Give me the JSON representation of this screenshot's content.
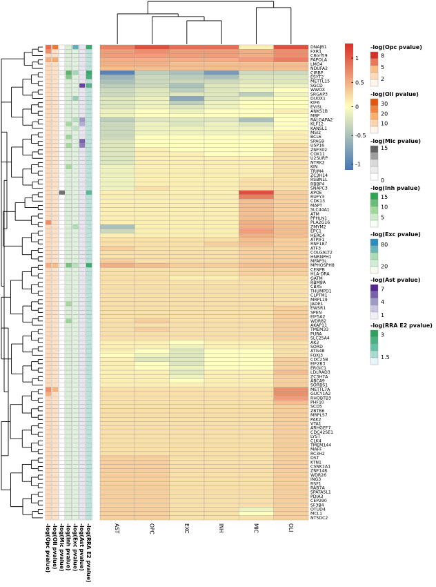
{
  "chart_data": {
    "type": "heatmap",
    "title": "",
    "columns": [
      "AST",
      "OPC",
      "EXC",
      "INH",
      "MIC",
      "OLI"
    ],
    "rows": [
      "DNAJB1",
      "FXR1",
      "C8orf59",
      "PAPOLA",
      "LMO4",
      "NDUFA2",
      "CIRBP",
      "ESYT2",
      "METTL15",
      "SGCD",
      "WWOX",
      "SRGAP3",
      "DUOX1",
      "KIF6",
      "EVI5L",
      "ANKS1B",
      "MBP",
      "RALGAPA2",
      "KLF12",
      "KANSL1",
      "MSI2",
      "BCL6",
      "SPAG9",
      "USP16",
      "ZNF302",
      "COX11",
      "U2SURP",
      "NTRK2",
      "KIN",
      "TRIM4",
      "ZC3H14",
      "RSBN1L",
      "RBBP4",
      "SNAPC3",
      "APOE",
      "RUFY3",
      "CDK13",
      "MAPT",
      "SLC44A1",
      "ATM",
      "PPHLN1",
      "PLA2G16",
      "ZMYM2",
      "EPC1",
      "HERC4",
      "ATPIF1",
      "RNF187",
      "ATF3",
      "COLGALT2",
      "HNRNPH1",
      "MFAP3L",
      "MPHOSPH8",
      "CENPB",
      "HLA-DRA",
      "GATM",
      "RBM8A",
      "CBX5",
      "THUMPD1",
      "CLPTM1",
      "MRPL19",
      "JADE1",
      "EWSR1",
      "SPEN",
      "EIF5A2",
      "WDR82",
      "AKAP11",
      "TMEM33",
      "PURA",
      "SLC25A4",
      "AK3",
      "SORD",
      "ATG4B",
      "FOXJ3",
      "CDC25B",
      "EIF2B3",
      "ERGIC1",
      "LDLRAD3",
      "ZC3H7A",
      "ABCA9",
      "SORBS1",
      "METTL7A",
      "GUCY1A2",
      "RHOBTB3",
      "PHF10",
      "SCD5",
      "ZBTB6",
      "MRPL57",
      "PAK2",
      "VTA1",
      "ARHGEF7",
      "CDC42SE1",
      "LYST",
      "CLK4",
      "TMEM144",
      "MAFF",
      "RC3H2",
      "DST",
      "KTN1",
      "CSNK1A1",
      "ZNF148",
      "WDR26",
      "ING3",
      "RSF1",
      "RAB7A",
      "SPATA5L1",
      "PDIA3",
      "CEP290",
      "SF3B4",
      "OTUD4",
      "MCL1",
      "NT5DC2"
    ],
    "values": [
      [
        0.8,
        1.1,
        0.9,
        0.9,
        0.1,
        1.1
      ],
      [
        0.6,
        0.7,
        0.6,
        0.6,
        0.5,
        0.7
      ],
      [
        0.6,
        0.6,
        0.6,
        0.6,
        0.5,
        0.7
      ],
      [
        0.5,
        0.5,
        0.5,
        0.5,
        0.6,
        0.8
      ],
      [
        0.5,
        0.5,
        0.4,
        0.4,
        0.4,
        0.4
      ],
      [
        0.4,
        0.4,
        0.4,
        0.4,
        0.4,
        0.4
      ],
      [
        -1.0,
        -0.4,
        -0.5,
        -0.8,
        -0.3,
        -0.3
      ],
      [
        -0.6,
        -0.3,
        -0.4,
        -0.5,
        -0.2,
        -0.2
      ],
      [
        -0.5,
        -0.3,
        -0.3,
        -0.3,
        -0.2,
        -0.2
      ],
      [
        -0.4,
        -0.3,
        -0.5,
        -0.2,
        -0.1,
        -0.1
      ],
      [
        -0.3,
        -0.2,
        -0.4,
        -0.2,
        -0.1,
        0.0
      ],
      [
        -0.3,
        -0.2,
        -0.2,
        -0.2,
        -0.4,
        -0.1
      ],
      [
        -0.2,
        -0.1,
        -0.7,
        -0.2,
        -0.1,
        0.0
      ],
      [
        -0.2,
        -0.1,
        -0.4,
        -0.1,
        0.0,
        0.0
      ],
      [
        -0.2,
        -0.1,
        -0.2,
        -0.1,
        0.0,
        0.0
      ],
      [
        -0.1,
        0.0,
        -0.1,
        0.0,
        0.0,
        0.1
      ],
      [
        -0.1,
        0.0,
        0.0,
        0.0,
        0.0,
        0.0
      ],
      [
        -0.4,
        -0.2,
        -0.2,
        -0.2,
        -0.5,
        0.0
      ],
      [
        -0.3,
        -0.1,
        -0.2,
        -0.1,
        -0.2,
        0.0
      ],
      [
        -0.3,
        -0.1,
        -0.1,
        -0.1,
        -0.1,
        0.0
      ],
      [
        -0.3,
        -0.1,
        -0.1,
        -0.1,
        -0.1,
        0.1
      ],
      [
        -0.3,
        0.0,
        0.0,
        0.0,
        0.0,
        0.1
      ],
      [
        -0.2,
        0.0,
        0.0,
        0.0,
        0.0,
        0.1
      ],
      [
        -0.2,
        0.0,
        0.0,
        0.0,
        0.0,
        0.2
      ],
      [
        -0.2,
        0.1,
        0.0,
        0.0,
        0.0,
        0.2
      ],
      [
        -0.2,
        0.1,
        0.1,
        0.0,
        0.0,
        0.2
      ],
      [
        -0.2,
        0.1,
        0.1,
        0.1,
        0.1,
        0.2
      ],
      [
        -0.2,
        0.1,
        0.1,
        0.1,
        0.1,
        0.2
      ],
      [
        -0.1,
        0.1,
        0.1,
        0.1,
        0.1,
        0.2
      ],
      [
        -0.1,
        0.1,
        0.1,
        0.1,
        0.1,
        0.2
      ],
      [
        -0.1,
        0.1,
        0.1,
        0.1,
        0.1,
        0.2
      ],
      [
        -0.1,
        0.1,
        0.1,
        0.1,
        0.2,
        0.2
      ],
      [
        -0.1,
        0.1,
        0.1,
        0.1,
        0.2,
        0.2
      ],
      [
        -0.1,
        0.2,
        0.1,
        0.1,
        0.2,
        0.2
      ],
      [
        0.1,
        0.1,
        0.1,
        0.1,
        1.1,
        0.3
      ],
      [
        0.1,
        0.1,
        0.1,
        0.1,
        0.8,
        0.3
      ],
      [
        0.1,
        0.1,
        0.1,
        0.1,
        0.4,
        0.3
      ],
      [
        0.1,
        0.1,
        0.1,
        0.1,
        0.4,
        0.3
      ],
      [
        0.1,
        0.1,
        0.1,
        0.1,
        0.4,
        0.3
      ],
      [
        0.1,
        0.1,
        0.1,
        0.1,
        0.4,
        0.3
      ],
      [
        0.1,
        0.1,
        0.1,
        0.1,
        0.4,
        0.3
      ],
      [
        0.1,
        0.1,
        0.1,
        0.1,
        0.5,
        0.4
      ],
      [
        -0.5,
        0.1,
        0.1,
        0.1,
        0.5,
        0.4
      ],
      [
        -0.3,
        0.1,
        0.1,
        0.1,
        0.6,
        0.4
      ],
      [
        0.1,
        0.1,
        0.1,
        0.1,
        0.5,
        0.4
      ],
      [
        0.2,
        0.2,
        0.2,
        0.2,
        0.4,
        0.3
      ],
      [
        0.2,
        0.2,
        0.2,
        0.3,
        0.4,
        0.3
      ],
      [
        0.3,
        0.2,
        0.2,
        0.2,
        0.3,
        0.3
      ],
      [
        0.2,
        0.2,
        0.2,
        0.2,
        0.3,
        0.3
      ],
      [
        0.2,
        0.2,
        0.2,
        0.2,
        0.3,
        0.3
      ],
      [
        0.3,
        0.2,
        0.2,
        0.2,
        0.3,
        0.3
      ],
      [
        0.5,
        0.4,
        0.3,
        0.3,
        0.4,
        0.4
      ],
      [
        0.2,
        0.2,
        0.2,
        0.2,
        0.3,
        0.3
      ],
      [
        0.2,
        0.2,
        0.2,
        0.2,
        0.3,
        0.3
      ],
      [
        0.2,
        0.2,
        0.1,
        0.1,
        0.2,
        0.2
      ],
      [
        0.2,
        0.2,
        0.2,
        0.2,
        0.2,
        0.2
      ],
      [
        0.2,
        0.2,
        0.2,
        0.2,
        0.2,
        0.2
      ],
      [
        0.2,
        0.2,
        0.2,
        0.2,
        0.2,
        0.2
      ],
      [
        0.2,
        0.2,
        0.2,
        0.2,
        0.2,
        0.2
      ],
      [
        0.2,
        0.2,
        0.2,
        0.2,
        0.2,
        0.2
      ],
      [
        0.2,
        0.2,
        0.2,
        0.2,
        0.2,
        0.2
      ],
      [
        0.2,
        0.2,
        0.2,
        0.2,
        0.2,
        0.3
      ],
      [
        0.2,
        0.2,
        0.2,
        0.2,
        0.2,
        0.3
      ],
      [
        0.2,
        0.2,
        0.2,
        0.2,
        0.2,
        0.3
      ],
      [
        0.2,
        0.3,
        0.2,
        0.2,
        0.2,
        0.3
      ],
      [
        0.2,
        0.2,
        0.2,
        0.2,
        0.2,
        0.3
      ],
      [
        0.2,
        0.3,
        0.2,
        0.2,
        0.2,
        0.3
      ],
      [
        0.2,
        0.2,
        0.2,
        0.2,
        0.2,
        0.3
      ],
      [
        0.2,
        0.2,
        0.2,
        0.2,
        0.2,
        0.3
      ],
      [
        0.1,
        0.1,
        0.0,
        0.1,
        0.1,
        0.2
      ],
      [
        0.1,
        0.1,
        -0.1,
        0.1,
        0.1,
        0.2
      ],
      [
        0.1,
        0.0,
        -0.2,
        0.0,
        0.0,
        0.2
      ],
      [
        0.0,
        -0.1,
        -0.2,
        0.0,
        0.0,
        0.2
      ],
      [
        0.1,
        -0.2,
        -0.2,
        0.0,
        0.0,
        0.3
      ],
      [
        0.1,
        0.0,
        -0.2,
        0.0,
        0.0,
        0.3
      ],
      [
        0.1,
        0.0,
        -0.1,
        0.0,
        0.0,
        0.3
      ],
      [
        0.1,
        0.1,
        -0.2,
        0.1,
        0.1,
        0.4
      ],
      [
        0.1,
        0.1,
        -0.1,
        0.1,
        0.1,
        0.3
      ],
      [
        0.1,
        0.1,
        0.0,
        0.1,
        0.1,
        0.3
      ],
      [
        0.1,
        0.1,
        0.1,
        0.1,
        0.1,
        0.3
      ],
      [
        0.2,
        0.2,
        0.2,
        0.2,
        0.2,
        0.7
      ],
      [
        0.2,
        0.2,
        0.2,
        0.2,
        0.2,
        0.7
      ],
      [
        0.2,
        0.2,
        0.2,
        0.2,
        0.2,
        0.6
      ],
      [
        0.2,
        0.2,
        0.2,
        0.2,
        0.2,
        0.4
      ],
      [
        0.2,
        0.2,
        0.2,
        0.2,
        0.2,
        0.3
      ],
      [
        0.2,
        0.2,
        0.2,
        0.2,
        0.2,
        0.3
      ],
      [
        0.2,
        0.2,
        0.2,
        0.2,
        0.2,
        0.3
      ],
      [
        0.2,
        0.2,
        0.2,
        0.2,
        0.2,
        0.3
      ],
      [
        0.2,
        0.2,
        0.2,
        0.2,
        0.2,
        0.3
      ],
      [
        0.2,
        0.2,
        0.2,
        0.2,
        0.2,
        0.3
      ],
      [
        0.2,
        0.2,
        0.2,
        0.2,
        0.2,
        0.3
      ],
      [
        0.2,
        0.2,
        0.2,
        0.2,
        0.2,
        0.3
      ],
      [
        0.2,
        0.2,
        0.2,
        0.2,
        0.2,
        0.3
      ],
      [
        0.2,
        0.2,
        0.2,
        0.2,
        0.2,
        0.3
      ],
      [
        0.2,
        0.2,
        0.2,
        0.2,
        0.2,
        0.3
      ],
      [
        0.2,
        0.2,
        0.2,
        0.2,
        0.2,
        0.3
      ],
      [
        0.3,
        0.3,
        0.2,
        0.2,
        0.2,
        0.3
      ],
      [
        0.3,
        0.3,
        0.2,
        0.2,
        0.2,
        0.3
      ],
      [
        0.3,
        0.3,
        0.2,
        0.2,
        0.2,
        0.3
      ],
      [
        0.3,
        0.3,
        0.2,
        0.2,
        0.2,
        0.3
      ],
      [
        0.3,
        0.3,
        0.2,
        0.2,
        0.2,
        0.3
      ],
      [
        0.3,
        0.3,
        0.2,
        0.2,
        0.2,
        0.3
      ],
      [
        0.3,
        0.3,
        0.2,
        0.2,
        0.2,
        0.3
      ],
      [
        0.3,
        0.3,
        0.2,
        0.2,
        0.2,
        0.3
      ],
      [
        0.3,
        0.3,
        0.2,
        0.2,
        0.2,
        0.3
      ],
      [
        0.3,
        0.3,
        0.2,
        0.2,
        0.2,
        0.3
      ],
      [
        0.3,
        0.3,
        0.2,
        0.2,
        0.2,
        0.3
      ],
      [
        0.3,
        0.3,
        0.2,
        0.2,
        0.2,
        0.3
      ],
      [
        0.3,
        0.3,
        0.2,
        0.2,
        -0.1,
        0.3
      ],
      [
        0.3,
        0.3,
        0.2,
        0.2,
        0.0,
        0.3
      ],
      [
        0.3,
        0.3,
        0.2,
        0.2,
        0.2,
        0.3
      ]
    ],
    "color_scale": {
      "ticks": [
        1,
        0.5,
        0,
        -0.5,
        -1
      ],
      "range": [
        -1.1,
        1.3
      ],
      "colors": [
        "#4575b4",
        "#ffffbf",
        "#d73027"
      ]
    },
    "annotations": [
      {
        "name": "-log(Opc pvalue)",
        "ticks": [
          8,
          5,
          2
        ],
        "range": [
          0,
          9
        ],
        "colors": [
          "#fff5eb",
          "#fdbe85",
          "#d73027"
        ],
        "sparse": {
          "0": 7,
          "1": 6,
          "3": 5,
          "41": 6,
          "51": 5,
          "80": 6,
          "81": 5
        },
        "base": 2.2
      },
      {
        "name": "-log(Oli pvalue)",
        "ticks": [
          30,
          20,
          10
        ],
        "range": [
          0,
          35
        ],
        "colors": [
          "#fff5eb",
          "#fdae6b",
          "#e6550d"
        ],
        "sparse": {
          "0": 28,
          "3": 18,
          "51": 14,
          "80": 16
        },
        "base": 5
      },
      {
        "name": "-log(Mic pvalue)",
        "ticks": [
          15,
          0
        ],
        "range": [
          0,
          16
        ],
        "colors": [
          "#ffffff",
          "#d9d9d9",
          "#636363"
        ],
        "sparse": {
          "34": 15,
          "6": 3,
          "17": 2,
          "51": 3
        },
        "base": 0.4
      },
      {
        "name": "-log(Inh pvalue)",
        "ticks": [
          15,
          10,
          5
        ],
        "range": [
          0,
          17
        ],
        "colors": [
          "#f7fcf5",
          "#a1d99b",
          "#31a354"
        ],
        "sparse": {
          "6": 14,
          "7": 11,
          "18": 8,
          "21": 9,
          "23": 8,
          "28": 8,
          "51": 12,
          "60": 8,
          "64": 9
        },
        "base": 3
      },
      {
        "name": "-log(Exc pvalue)",
        "ticks": [
          80,
          20
        ],
        "range": [
          0,
          95
        ],
        "colors": [
          "#f7fcf0",
          "#a8ddb5",
          "#2b8cbe"
        ],
        "sparse": {
          "0": 75,
          "6": 50,
          "12": 55,
          "17": 40,
          "19": 35,
          "42": 45,
          "51": 40
        },
        "base": 15
      },
      {
        "name": "-log(Ast pvalue)",
        "ticks": [
          7,
          4,
          1
        ],
        "range": [
          0,
          8
        ],
        "colors": [
          "#f2f0f7",
          "#9e9ac8",
          "#54278f"
        ],
        "sparse": {
          "9": 7,
          "17": 4,
          "18": 3,
          "22": 6,
          "23": 5
        },
        "base": 0.5
      },
      {
        "name": "-log(RRA E2 pvalue)",
        "ticks": [
          3,
          1.5
        ],
        "range": [
          1,
          3.3
        ],
        "colors": [
          "#e5f5f9",
          "#66c2a4",
          "#2ca25f"
        ],
        "sparse": {
          "0": 3,
          "6": 3.1,
          "7": 2.8,
          "9": 2.6,
          "51": 3,
          "34": 2.4
        },
        "base": 1.4
      }
    ],
    "legend_placement": "right"
  }
}
